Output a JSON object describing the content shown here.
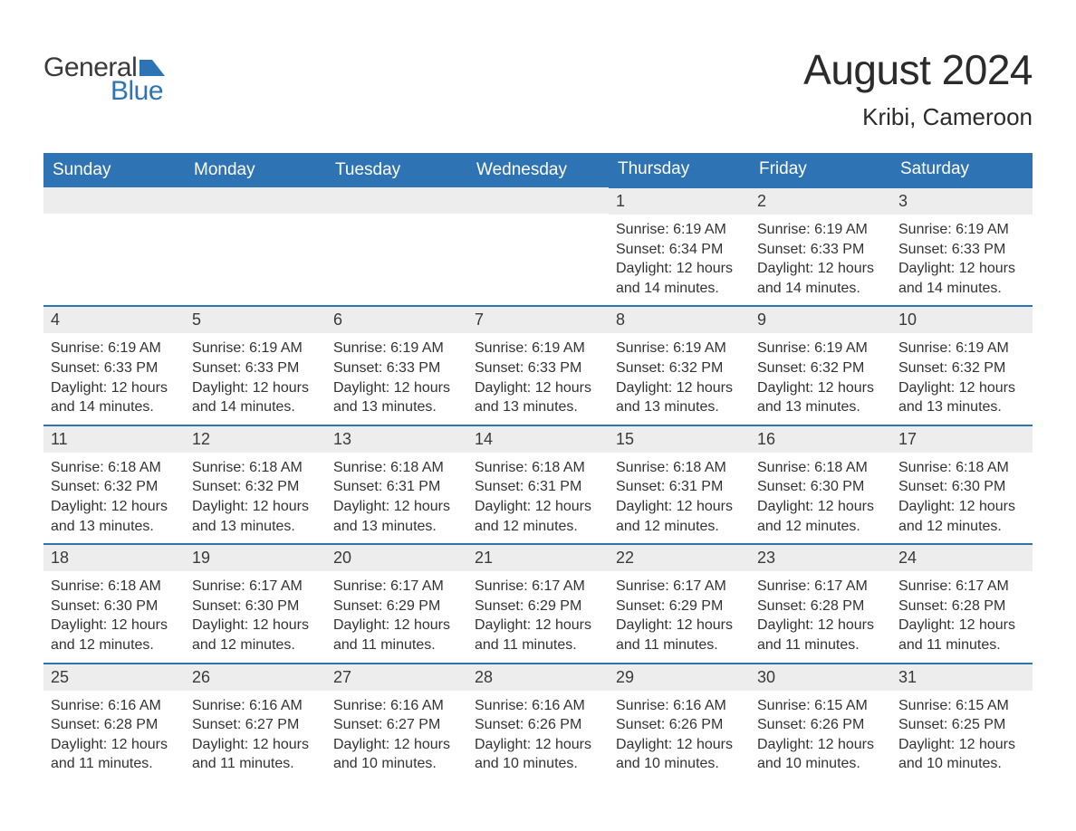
{
  "logo": {
    "general": "General",
    "blue": "Blue"
  },
  "title": "August 2024",
  "location": "Kribi, Cameroon",
  "colors": {
    "header_bg": "#2e74b5",
    "header_text": "#ffffff",
    "daynum_bg": "#ededed",
    "row_border": "#2e74b5",
    "body_text": "#333333",
    "background": "#ffffff"
  },
  "weekdays": [
    "Sunday",
    "Monday",
    "Tuesday",
    "Wednesday",
    "Thursday",
    "Friday",
    "Saturday"
  ],
  "weeks": [
    [
      {
        "empty": true
      },
      {
        "empty": true
      },
      {
        "empty": true
      },
      {
        "empty": true
      },
      {
        "day": "1",
        "sunrise": "6:19 AM",
        "sunset": "6:34 PM",
        "daylight": "12 hours and 14 minutes."
      },
      {
        "day": "2",
        "sunrise": "6:19 AM",
        "sunset": "6:33 PM",
        "daylight": "12 hours and 14 minutes."
      },
      {
        "day": "3",
        "sunrise": "6:19 AM",
        "sunset": "6:33 PM",
        "daylight": "12 hours and 14 minutes."
      }
    ],
    [
      {
        "day": "4",
        "sunrise": "6:19 AM",
        "sunset": "6:33 PM",
        "daylight": "12 hours and 14 minutes."
      },
      {
        "day": "5",
        "sunrise": "6:19 AM",
        "sunset": "6:33 PM",
        "daylight": "12 hours and 14 minutes."
      },
      {
        "day": "6",
        "sunrise": "6:19 AM",
        "sunset": "6:33 PM",
        "daylight": "12 hours and 13 minutes."
      },
      {
        "day": "7",
        "sunrise": "6:19 AM",
        "sunset": "6:33 PM",
        "daylight": "12 hours and 13 minutes."
      },
      {
        "day": "8",
        "sunrise": "6:19 AM",
        "sunset": "6:32 PM",
        "daylight": "12 hours and 13 minutes."
      },
      {
        "day": "9",
        "sunrise": "6:19 AM",
        "sunset": "6:32 PM",
        "daylight": "12 hours and 13 minutes."
      },
      {
        "day": "10",
        "sunrise": "6:19 AM",
        "sunset": "6:32 PM",
        "daylight": "12 hours and 13 minutes."
      }
    ],
    [
      {
        "day": "11",
        "sunrise": "6:18 AM",
        "sunset": "6:32 PM",
        "daylight": "12 hours and 13 minutes."
      },
      {
        "day": "12",
        "sunrise": "6:18 AM",
        "sunset": "6:32 PM",
        "daylight": "12 hours and 13 minutes."
      },
      {
        "day": "13",
        "sunrise": "6:18 AM",
        "sunset": "6:31 PM",
        "daylight": "12 hours and 13 minutes."
      },
      {
        "day": "14",
        "sunrise": "6:18 AM",
        "sunset": "6:31 PM",
        "daylight": "12 hours and 12 minutes."
      },
      {
        "day": "15",
        "sunrise": "6:18 AM",
        "sunset": "6:31 PM",
        "daylight": "12 hours and 12 minutes."
      },
      {
        "day": "16",
        "sunrise": "6:18 AM",
        "sunset": "6:30 PM",
        "daylight": "12 hours and 12 minutes."
      },
      {
        "day": "17",
        "sunrise": "6:18 AM",
        "sunset": "6:30 PM",
        "daylight": "12 hours and 12 minutes."
      }
    ],
    [
      {
        "day": "18",
        "sunrise": "6:18 AM",
        "sunset": "6:30 PM",
        "daylight": "12 hours and 12 minutes."
      },
      {
        "day": "19",
        "sunrise": "6:17 AM",
        "sunset": "6:30 PM",
        "daylight": "12 hours and 12 minutes."
      },
      {
        "day": "20",
        "sunrise": "6:17 AM",
        "sunset": "6:29 PM",
        "daylight": "12 hours and 11 minutes."
      },
      {
        "day": "21",
        "sunrise": "6:17 AM",
        "sunset": "6:29 PM",
        "daylight": "12 hours and 11 minutes."
      },
      {
        "day": "22",
        "sunrise": "6:17 AM",
        "sunset": "6:29 PM",
        "daylight": "12 hours and 11 minutes."
      },
      {
        "day": "23",
        "sunrise": "6:17 AM",
        "sunset": "6:28 PM",
        "daylight": "12 hours and 11 minutes."
      },
      {
        "day": "24",
        "sunrise": "6:17 AM",
        "sunset": "6:28 PM",
        "daylight": "12 hours and 11 minutes."
      }
    ],
    [
      {
        "day": "25",
        "sunrise": "6:16 AM",
        "sunset": "6:28 PM",
        "daylight": "12 hours and 11 minutes."
      },
      {
        "day": "26",
        "sunrise": "6:16 AM",
        "sunset": "6:27 PM",
        "daylight": "12 hours and 11 minutes."
      },
      {
        "day": "27",
        "sunrise": "6:16 AM",
        "sunset": "6:27 PM",
        "daylight": "12 hours and 10 minutes."
      },
      {
        "day": "28",
        "sunrise": "6:16 AM",
        "sunset": "6:26 PM",
        "daylight": "12 hours and 10 minutes."
      },
      {
        "day": "29",
        "sunrise": "6:16 AM",
        "sunset": "6:26 PM",
        "daylight": "12 hours and 10 minutes."
      },
      {
        "day": "30",
        "sunrise": "6:15 AM",
        "sunset": "6:26 PM",
        "daylight": "12 hours and 10 minutes."
      },
      {
        "day": "31",
        "sunrise": "6:15 AM",
        "sunset": "6:25 PM",
        "daylight": "12 hours and 10 minutes."
      }
    ]
  ],
  "labels": {
    "sunrise": "Sunrise: ",
    "sunset": "Sunset: ",
    "daylight": "Daylight: "
  }
}
